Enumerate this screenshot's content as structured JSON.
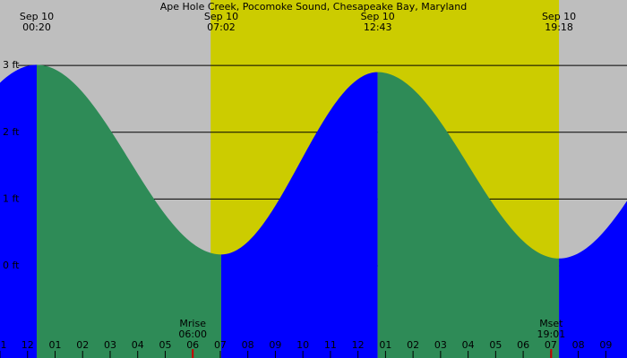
{
  "chart_data": {
    "type": "tide",
    "title": "Ape Hole Creek, Pocomoke Sound, Chesapeake Bay, Maryland",
    "extremes": [
      {
        "date": "Sep 10",
        "time": "00:20",
        "height": 3.01
      },
      {
        "date": "Sep 10",
        "time": "07:02",
        "height": 0.17
      },
      {
        "date": "Sep 10",
        "time": "12:43",
        "height": 2.9
      },
      {
        "date": "Sep 10",
        "time": "19:18",
        "height": 0.11
      }
    ],
    "xlim": [
      -1,
      21.77
    ],
    "ylim": [
      -1.38,
      3.98
    ],
    "yticks": [
      {
        "value": 0,
        "label": "0 ft"
      },
      {
        "value": 1,
        "label": "1 ft"
      },
      {
        "value": 2,
        "label": "2 ft"
      },
      {
        "value": 3,
        "label": "3 ft"
      }
    ],
    "hour_labels": [
      "1",
      "12",
      "01",
      "02",
      "03",
      "04",
      "05",
      "06",
      "07",
      "08",
      "09",
      "10",
      "11",
      "12",
      "01",
      "02",
      "03",
      "04",
      "05",
      "06",
      "07",
      "08",
      "09"
    ],
    "daylight_hours": [
      6.65,
      19.3
    ],
    "moon": [
      {
        "label": "Mrise",
        "time": "06:00"
      },
      {
        "label": "Mset",
        "time": "19:01"
      }
    ],
    "colors": {
      "night": "#bebebe",
      "day": "#cccc00",
      "rising": "#0000ff",
      "falling": "#2e8b57",
      "grid": "#000000",
      "moon": "#cc0000"
    }
  }
}
